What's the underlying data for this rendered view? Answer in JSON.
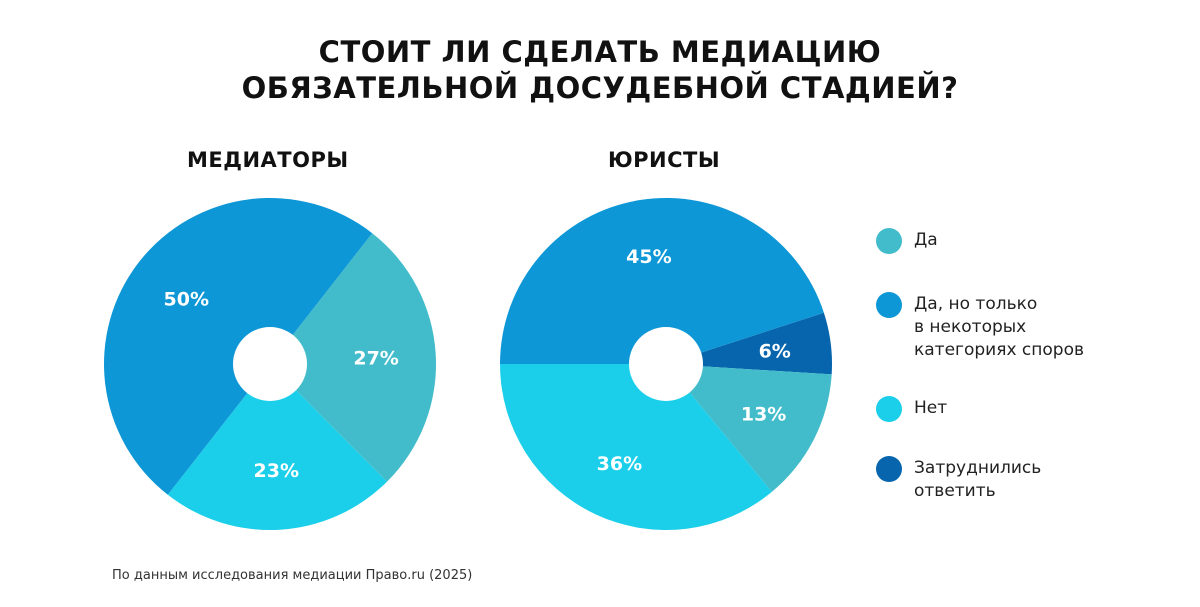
{
  "title_lines": [
    "СТОИТ ЛИ СДЕЛАТЬ МЕДИАЦИЮ",
    "ОБЯЗАТЕЛЬНОЙ ДОСУДЕБНОЙ СТАДИЕЙ?"
  ],
  "source": "По данным исследования медиации Право.ru (2025)",
  "legend": [
    {
      "label": "Да",
      "color": "#42BCCB"
    },
    {
      "label": "Да, но только\nв некоторых\nкатегориях споров",
      "color": "#0E97D6"
    },
    {
      "label": "Нет",
      "color": "#1BCFEA"
    },
    {
      "label": "Затруднились\nответить",
      "color": "#0665AC"
    }
  ],
  "chart_data": [
    {
      "type": "pie",
      "title": "МЕДИАТОРЫ",
      "slices": [
        {
          "category": "Да",
          "value": 27,
          "label": "27%",
          "color": "#42BCCB"
        },
        {
          "category": "Нет",
          "value": 23,
          "label": "23%",
          "color": "#1BCFEA"
        },
        {
          "category": "Да, но только в некоторых категориях споров",
          "value": 50,
          "label": "50%",
          "color": "#0E97D6"
        }
      ]
    },
    {
      "type": "pie",
      "title": "ЮРИСТЫ",
      "slices": [
        {
          "category": "Затруднились ответить",
          "value": 6,
          "label": "6%",
          "color": "#0665AC"
        },
        {
          "category": "Да",
          "value": 13,
          "label": "13%",
          "color": "#42BCCB"
        },
        {
          "category": "Нет",
          "value": 36,
          "label": "36%",
          "color": "#1BCFEA"
        },
        {
          "category": "Да, но только в некоторых категориях споров",
          "value": 45,
          "label": "45%",
          "color": "#0E97D6"
        }
      ]
    }
  ]
}
